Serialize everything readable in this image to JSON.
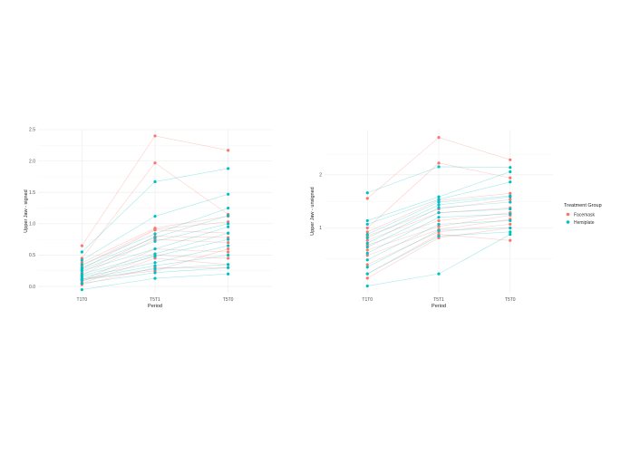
{
  "colors": {
    "Facemask": "#F8766D",
    "Hemiplate": "#00BFC4",
    "grid_major": "#ebebeb",
    "grid_minor": "#f5f5f5"
  },
  "legend": {
    "title": "Treatment Group",
    "placement": "right",
    "items": [
      "Facemask",
      "Hemiplate"
    ]
  },
  "chart_data": [
    {
      "type": "line",
      "xlabel": "Period",
      "ylabel": "Upper Jaw - signed",
      "categories": [
        "T1T0",
        "T5T1",
        "T5T0"
      ],
      "y_scale": "linear",
      "ylim": [
        -0.1,
        2.5
      ],
      "y_ticks": [
        0.0,
        0.5,
        1.0,
        1.5,
        2.0,
        2.5
      ],
      "y_tick_labels": [
        "0.0",
        "0.5",
        "1.0",
        "1.5",
        "2.0",
        "2.5"
      ],
      "grid": true,
      "series": [
        {
          "group": "Facemask",
          "values": [
            0.65,
            2.4,
            2.17
          ]
        },
        {
          "group": "Facemask",
          "values": [
            0.45,
            1.97,
            1.15
          ]
        },
        {
          "group": "Facemask",
          "values": [
            0.38,
            0.93,
            1.12
          ]
        },
        {
          "group": "Facemask",
          "values": [
            0.33,
            0.91,
            1.03
          ]
        },
        {
          "group": "Facemask",
          "values": [
            0.28,
            0.9,
            0.85
          ]
        },
        {
          "group": "Facemask",
          "values": [
            0.22,
            0.8,
            0.78
          ]
        },
        {
          "group": "Facemask",
          "values": [
            0.18,
            0.75,
            0.7
          ]
        },
        {
          "group": "Facemask",
          "values": [
            0.1,
            0.6,
            0.55
          ]
        },
        {
          "group": "Facemask",
          "values": [
            0.08,
            0.5,
            0.45
          ]
        },
        {
          "group": "Facemask",
          "values": [
            0.05,
            0.45,
            0.35
          ]
        },
        {
          "group": "Facemask",
          "values": [
            0.03,
            0.3,
            0.3
          ]
        },
        {
          "group": "Facemask",
          "values": [
            0.12,
            0.25,
            0.6
          ]
        },
        {
          "group": "Hemiplate",
          "values": [
            0.55,
            1.67,
            1.88
          ]
        },
        {
          "group": "Hemiplate",
          "values": [
            0.42,
            1.12,
            1.47
          ]
        },
        {
          "group": "Hemiplate",
          "values": [
            0.35,
            0.84,
            1.25
          ]
        },
        {
          "group": "Hemiplate",
          "values": [
            0.3,
            0.78,
            1.13
          ]
        },
        {
          "group": "Hemiplate",
          "values": [
            0.27,
            0.72,
            1.0
          ]
        },
        {
          "group": "Hemiplate",
          "values": [
            0.25,
            0.6,
            0.95
          ]
        },
        {
          "group": "Hemiplate",
          "values": [
            0.2,
            0.52,
            0.85
          ]
        },
        {
          "group": "Hemiplate",
          "values": [
            0.17,
            0.48,
            0.75
          ]
        },
        {
          "group": "Hemiplate",
          "values": [
            0.15,
            0.38,
            0.65
          ]
        },
        {
          "group": "Hemiplate",
          "values": [
            0.12,
            0.33,
            0.5
          ]
        },
        {
          "group": "Hemiplate",
          "values": [
            0.1,
            0.28,
            0.35
          ]
        },
        {
          "group": "Hemiplate",
          "values": [
            0.05,
            0.22,
            0.3
          ]
        },
        {
          "group": "Hemiplate",
          "values": [
            -0.05,
            0.13,
            0.2
          ]
        }
      ]
    },
    {
      "type": "line",
      "xlabel": "Period",
      "ylabel": "Upper Jaw - unsigned",
      "categories": [
        "T1T0",
        "T5T1",
        "T5T0"
      ],
      "y_scale": "log10",
      "ylim": [
        0.43,
        3.6
      ],
      "y_ticks": [
        1,
        2
      ],
      "y_tick_labels": [
        "1",
        "2"
      ],
      "grid": true,
      "series": [
        {
          "group": "Facemask",
          "values": [
            1.47,
            3.25,
            2.43
          ]
        },
        {
          "group": "Facemask",
          "values": [
            1.0,
            2.33,
            1.92
          ]
        },
        {
          "group": "Facemask",
          "values": [
            0.95,
            1.43,
            1.57
          ]
        },
        {
          "group": "Facemask",
          "values": [
            0.9,
            1.28,
            1.45
          ]
        },
        {
          "group": "Facemask",
          "values": [
            0.85,
            1.22,
            1.3
          ]
        },
        {
          "group": "Facemask",
          "values": [
            0.8,
            1.1,
            1.22
          ]
        },
        {
          "group": "Facemask",
          "values": [
            0.75,
            1.02,
            1.18
          ]
        },
        {
          "group": "Facemask",
          "values": [
            0.7,
            0.98,
            1.12
          ]
        },
        {
          "group": "Facemask",
          "values": [
            0.62,
            0.95,
            1.05
          ]
        },
        {
          "group": "Facemask",
          "values": [
            0.55,
            0.92,
            0.85
          ]
        },
        {
          "group": "Facemask",
          "values": [
            0.52,
            0.88,
            1.0
          ]
        },
        {
          "group": "Hemiplate",
          "values": [
            1.58,
            2.22,
            2.2
          ]
        },
        {
          "group": "Hemiplate",
          "values": [
            1.1,
            1.5,
            2.08
          ]
        },
        {
          "group": "Hemiplate",
          "values": [
            1.05,
            1.45,
            1.82
          ]
        },
        {
          "group": "Hemiplate",
          "values": [
            0.92,
            1.4,
            1.52
          ]
        },
        {
          "group": "Hemiplate",
          "values": [
            0.88,
            1.35,
            1.5
          ]
        },
        {
          "group": "Hemiplate",
          "values": [
            0.82,
            1.3,
            1.4
          ]
        },
        {
          "group": "Hemiplate",
          "values": [
            0.78,
            1.22,
            1.28
          ]
        },
        {
          "group": "Hemiplate",
          "values": [
            0.72,
            1.15,
            1.2
          ]
        },
        {
          "group": "Hemiplate",
          "values": [
            0.66,
            1.05,
            1.1
          ]
        },
        {
          "group": "Hemiplate",
          "values": [
            0.6,
            0.97,
            1.0
          ]
        },
        {
          "group": "Hemiplate",
          "values": [
            0.55,
            0.9,
            0.95
          ]
        },
        {
          "group": "Hemiplate",
          "values": [
            0.47,
            0.55,
            0.92
          ]
        }
      ]
    }
  ]
}
